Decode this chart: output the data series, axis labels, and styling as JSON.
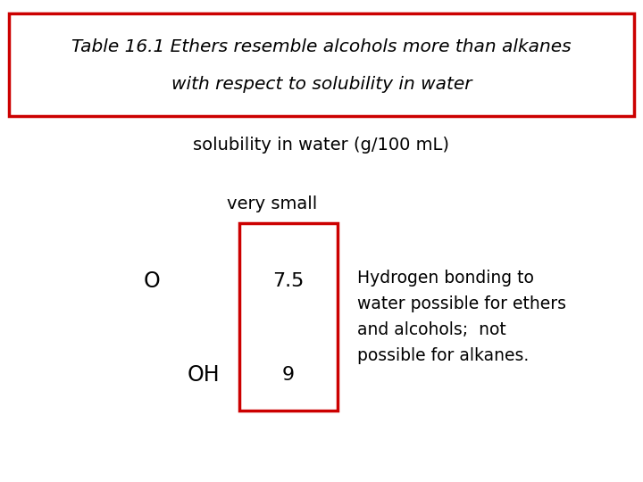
{
  "title_line1": "Table 16.1 Ethers resemble alcohols more than alkanes",
  "title_line2": "with respect to solubility in water",
  "subtitle": "solubility in water (g/100 mL)",
  "col_header": "very small",
  "row1_label": "O",
  "row2_label": "OH",
  "row1_value": "7.5",
  "row2_value": "9",
  "annotation": "Hydrogen bonding to\nwater possible for ethers\nand alcohols;  not\npossible for alkanes.",
  "title_box_color": "#cc0000",
  "data_box_color": "#cc0000",
  "bg_color": "#ffffff",
  "text_color": "#000000",
  "title_fontsize": 14.5,
  "subtitle_fontsize": 14,
  "label_fontsize": 17,
  "value_fontsize": 16,
  "annotation_fontsize": 13.5
}
